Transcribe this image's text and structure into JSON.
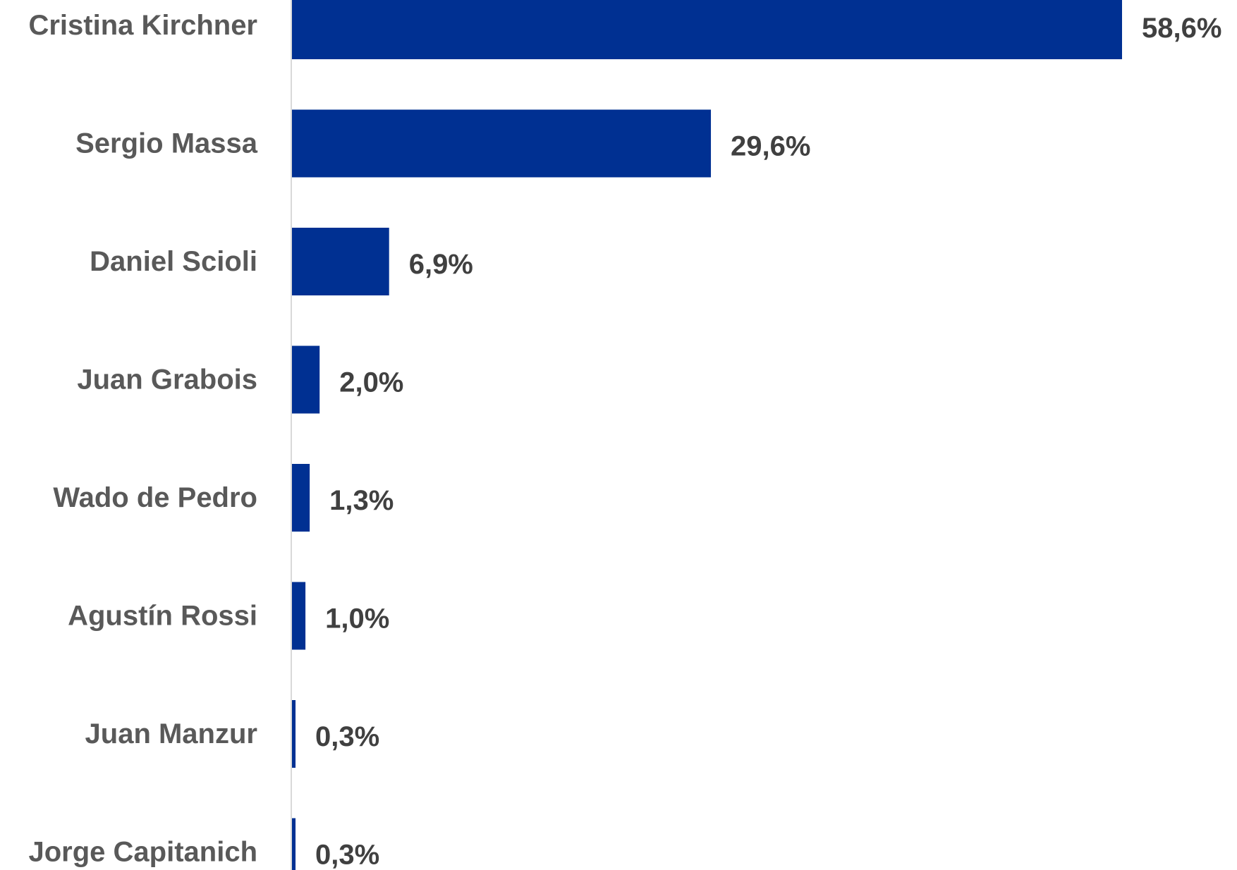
{
  "chart_data": {
    "type": "bar",
    "orientation": "horizontal",
    "categories": [
      "Cristina Kirchner",
      "Sergio Massa",
      "Daniel Scioli",
      "Juan Grabois",
      "Wado de Pedro",
      "Agustín Rossi",
      "Juan Manzur",
      "Jorge Capitanich"
    ],
    "values": [
      58.6,
      29.6,
      6.9,
      2.0,
      1.3,
      1.0,
      0.3,
      0.3
    ],
    "data_labels": [
      "58,6%",
      "29,6%",
      "6,9%",
      "2,0%",
      "1,3%",
      "1,0%",
      "0,3%",
      "0,3%"
    ],
    "title": "",
    "xlabel": "",
    "ylabel": "",
    "xlim": [
      0,
      58.6
    ],
    "grid": false,
    "legend": "none"
  },
  "colors": {
    "bar": "#003092",
    "category_label": "#595959",
    "value_label": "#404040",
    "axis_line": "#d9d9d9"
  }
}
